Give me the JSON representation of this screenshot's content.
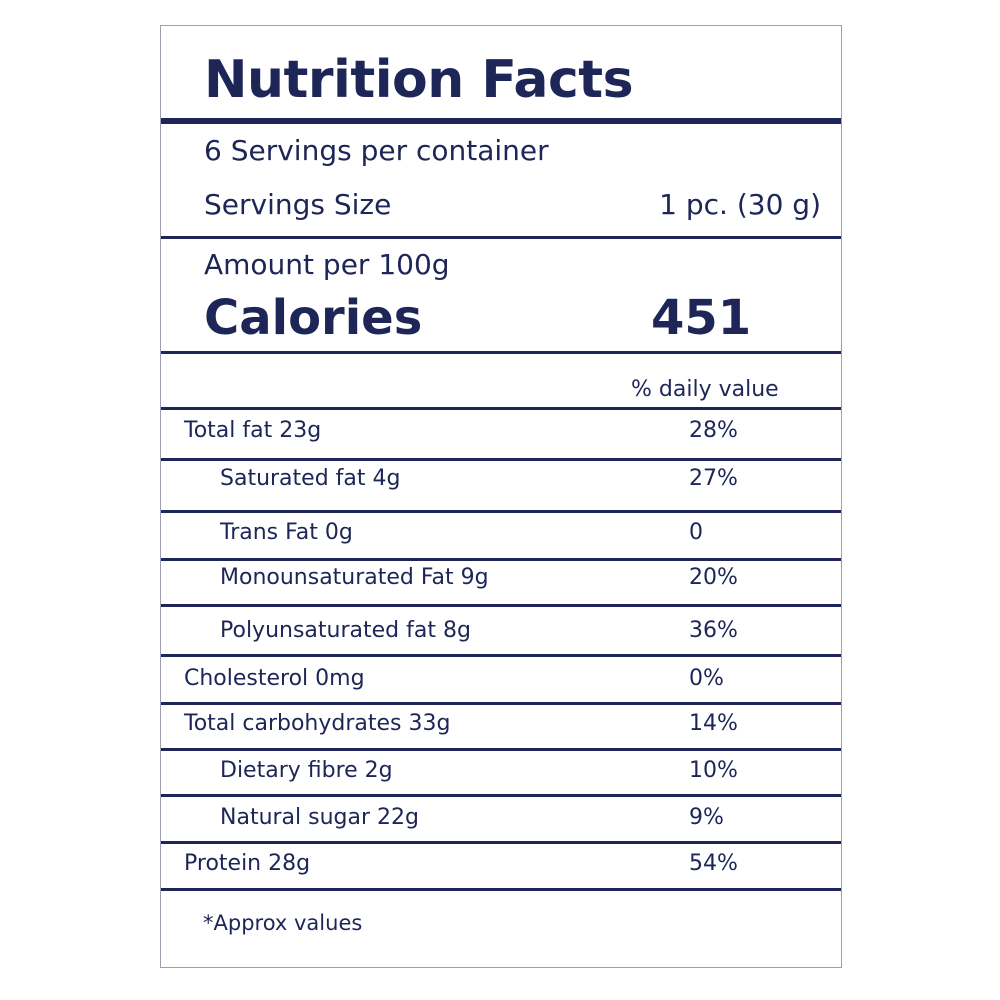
{
  "title": "Nutrition Facts",
  "servings_per_container": "6 Servings per container",
  "serving_size_label": "Servings Size",
  "serving_size_value": "1 pc. (30 g)",
  "amount_per": "Amount per 100g",
  "calories_label": "Calories",
  "calories_value": "451",
  "daily_value_header": "% daily value",
  "nutrients": [
    {
      "name": "Total fat 23g",
      "dv": "28%"
    },
    {
      "name": "Saturated fat 4g",
      "dv": "27%"
    },
    {
      "name": "Trans Fat 0g",
      "dv": "0"
    },
    {
      "name": "Monounsaturated Fat 9g",
      "dv": "20%"
    },
    {
      "name": "Polyunsaturated fat 8g",
      "dv": "36%"
    },
    {
      "name": "Cholesterol 0mg",
      "dv": "0%"
    },
    {
      "name": "Total carbohydrates 33g",
      "dv": "14%"
    },
    {
      "name": "Dietary fibre 2g",
      "dv": "10%"
    },
    {
      "name": "Natural sugar 22g",
      "dv": "9%"
    },
    {
      "name": "Protein 28g",
      "dv": "54%"
    }
  ],
  "footnote": "*Approx values",
  "colors": {
    "text": "#1d2657",
    "background": "#ffffff"
  }
}
